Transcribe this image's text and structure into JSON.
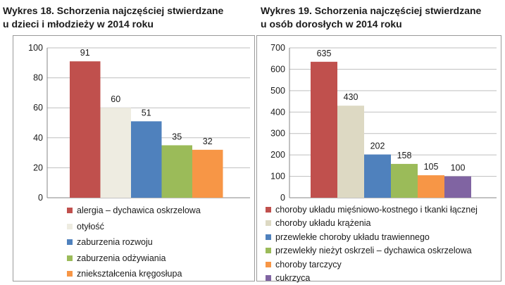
{
  "chart_data": [
    {
      "type": "bar",
      "title_line1": "Wykres 18. Schorzenia najczęściej stwierdzane",
      "title_line2": "u dzieci i młodzieży w 2014 roku",
      "categories": [
        "alergia – dychawica oskrzelowa",
        "otyłość",
        "zaburzenia rozwoju",
        "zaburzenia odżywiania",
        "zniekształcenia kręgosłupa"
      ],
      "values": [
        91,
        60,
        51,
        35,
        32
      ],
      "colors": [
        "#c0504d",
        "#eeece1",
        "#4f81bd",
        "#9bbb59",
        "#f79646"
      ],
      "yticks": [
        "0",
        "20",
        "40",
        "60",
        "80",
        "100"
      ],
      "ylim": [
        0,
        100
      ],
      "grid": true,
      "legend": "bottom"
    },
    {
      "type": "bar",
      "title_line1": "Wykres 19. Schorzenia najczęściej stwierdzane",
      "title_line2": "u osób dorosłych w 2014 roku",
      "categories": [
        "choroby układu mięśniowo-kostnego i tkanki łącznej",
        "choroby układu krążenia",
        "przewlekłe choroby układu trawiennego",
        "przewlekły nieżyt oskrzeli – dychawica oskrzelowa",
        "choroby tarczycy",
        "cukrzyca"
      ],
      "values": [
        635,
        430,
        202,
        158,
        105,
        100
      ],
      "colors": [
        "#c0504d",
        "#ddd9c3",
        "#4f81bd",
        "#9bbb59",
        "#f79646",
        "#8064a2"
      ],
      "yticks": [
        "0",
        "100",
        "200",
        "300",
        "400",
        "500",
        "600",
        "700"
      ],
      "ylim": [
        0,
        700
      ],
      "grid": true,
      "legend": "bottom"
    }
  ]
}
